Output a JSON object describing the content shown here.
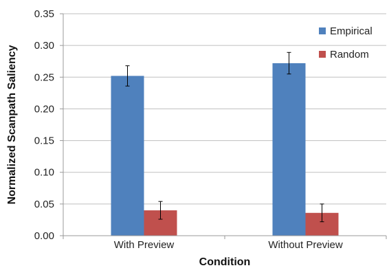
{
  "chart_data": {
    "type": "bar",
    "categories": [
      "With Preview",
      "Without Preview"
    ],
    "series": [
      {
        "name": "Empirical",
        "values": [
          0.252,
          0.272
        ],
        "error": [
          0.016,
          0.017
        ],
        "color": "#4f81bd"
      },
      {
        "name": "Random",
        "values": [
          0.04,
          0.036
        ],
        "error": [
          0.014,
          0.014
        ],
        "color": "#c0504d"
      }
    ],
    "xlabel": "Condition",
    "ylabel": "Normalized Scanpath Saliency",
    "ylim": [
      0,
      0.35
    ],
    "yticks": [
      "0.00",
      "0.05",
      "0.10",
      "0.15",
      "0.20",
      "0.25",
      "0.30",
      "0.35"
    ],
    "grid": true,
    "legend_position": "top-right"
  }
}
